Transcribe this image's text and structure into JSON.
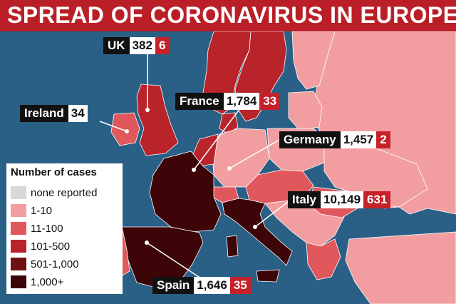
{
  "title": "SPREAD OF CORONAVIRUS IN EUROPE",
  "colors": {
    "sea": "#2a5f86",
    "none": "#d8d8d8",
    "c1_10": "#f29ea1",
    "c11_100": "#e0585c",
    "c101_500": "#b9242a",
    "c501_1000": "#6e1115",
    "c1000_plus": "#3d0508",
    "title_bg": "#ba1f27"
  },
  "callouts": [
    {
      "name": "UK",
      "cases": "382",
      "deaths": "6"
    },
    {
      "name": "France",
      "cases": "1,784",
      "deaths": "33"
    },
    {
      "name": "Ireland",
      "cases": "34",
      "deaths": ""
    },
    {
      "name": "Germany",
      "cases": "1,457",
      "deaths": "2"
    },
    {
      "name": "Italy",
      "cases": "10,149",
      "deaths": "631"
    },
    {
      "name": "Spain",
      "cases": "1,646",
      "deaths": "35"
    }
  ],
  "legend": {
    "title": "Number of cases",
    "items": [
      {
        "label": "none reported",
        "color": "#d8d8d8"
      },
      {
        "label": "1-10",
        "color": "#f29ea1"
      },
      {
        "label": "11-100",
        "color": "#e0585c"
      },
      {
        "label": "101-500",
        "color": "#b9242a"
      },
      {
        "label": "501-1,000",
        "color": "#6e1115"
      },
      {
        "label": "1,000+",
        "color": "#3d0508"
      }
    ]
  }
}
